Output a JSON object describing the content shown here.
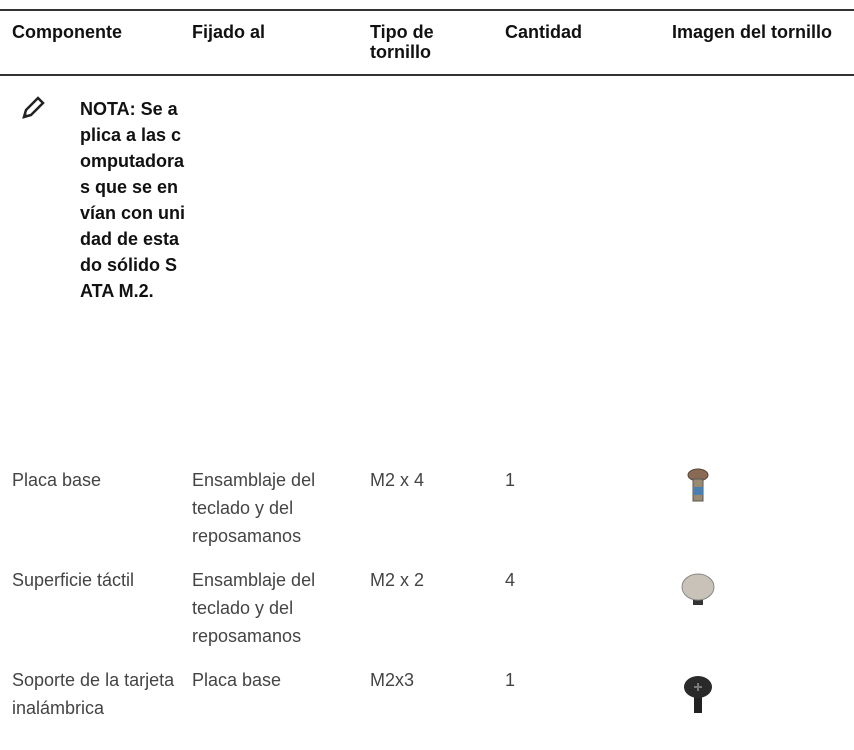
{
  "table": {
    "header": [
      "Componente",
      "Fijado al",
      "Tipo de tornillo",
      "Cantidad",
      "Imagen del tornillo"
    ],
    "note": "NOTA: Se aplica a las computadoras que se envían con unidad de estado sólido SATA M.2.",
    "rows": [
      [
        "Placa base",
        "Ensamblaje del teclado y del reposamanos",
        "M2 x 4",
        "1"
      ],
      [
        "Superficie táctil",
        "Ensamblaje del teclado y del reposamanos",
        "M2 x 2",
        "4"
      ],
      [
        "Soporte de la tarjeta inalámbrica",
        "Placa base",
        "M2x3",
        "1"
      ]
    ]
  }
}
